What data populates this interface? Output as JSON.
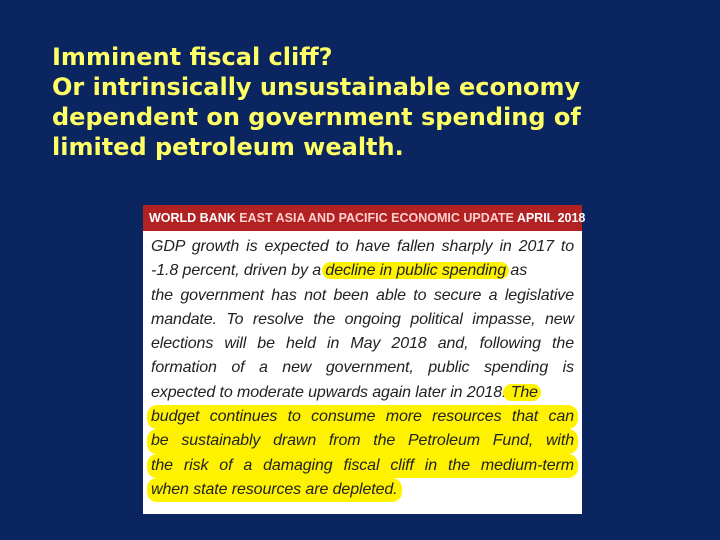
{
  "slide": {
    "title_lines": [
      "Imminent fiscal cliff?",
      "Or intrinsically unsustainable economy",
      "dependent on government spending of",
      "limited petroleum wealth."
    ]
  },
  "excerpt": {
    "header": {
      "part1": "WORLD BANK ",
      "part2": "EAST ASIA AND PACIFIC ECONOMIC UPDATE",
      "part3": " APRIL 2018"
    },
    "lines": {
      "l1": "GDP growth is expected to have fallen sharply in 2017 to",
      "l2_pre": "-1.8 percent, driven by a ",
      "l2_hl": "decline in public spending",
      "l2_post": " as",
      "l3": "the government has not been able to secure a legislative",
      "l4": "mandate. To resolve the ongoing political impasse, new",
      "l5": "elections will be held in May 2018 and, following the",
      "l6": "formation of a new government, public spending is",
      "l7_pre": "expected to moderate upwards again later in 2018.",
      "l7_hl": " The",
      "l8": "budget continues to consume more resources that can",
      "l9": "be sustainably drawn from the Petroleum Fund, with",
      "l10": "the risk of a damaging fiscal cliff in the medium-term",
      "l11": "when state resources are depleted."
    },
    "highlight_color": "#fff200",
    "header_color": "#b22222"
  },
  "colors": {
    "background": "#0b2560",
    "title": "#ffff66"
  }
}
